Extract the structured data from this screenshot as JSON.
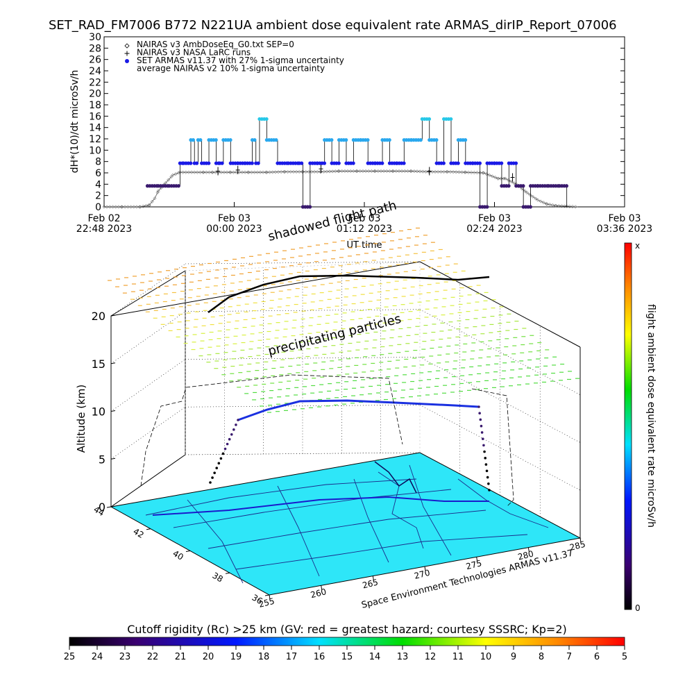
{
  "title": "SET_RAD_FM7006  B772 N221UA ambient dose equivalent rate ARMAS_dirIP_Report_07006",
  "chart_data": [
    {
      "type": "scatter",
      "ylabel": "dH*(10)/dt microSv/h",
      "xlabel": "UT time",
      "ylim": [
        0,
        30
      ],
      "yticks": [
        0,
        2,
        4,
        6,
        8,
        10,
        12,
        14,
        16,
        18,
        20,
        22,
        24,
        26,
        28,
        30
      ],
      "xticks": [
        {
          "day": "Feb 02",
          "time": "22:48 2023"
        },
        {
          "day": "Feb 03",
          "time": "00:00 2023"
        },
        {
          "day": "Feb 03",
          "time": "01:12 2023"
        },
        {
          "day": "Feb 03",
          "time": "02:24 2023"
        },
        {
          "day": "Feb 03",
          "time": "03:36 2023"
        }
      ],
      "legend": [
        {
          "label": "NAIRAS v3 AmbDoseEq_G0.txt SEP=0",
          "marker": "diamond"
        },
        {
          "label": "NAIRAS v3 NASA LaRC runs",
          "marker": "plus"
        },
        {
          "label": "SET ARMAS v11.37 with 27% 1-sigma uncertainty",
          "marker": "dot"
        },
        {
          "label": "average NAIRAS v2 10% 1-sigma uncertainty",
          "marker": "none"
        }
      ],
      "series": [
        {
          "name": "NAIRAS v3 AmbDoseEq_G0.txt SEP=0",
          "x_minutes": [
            0,
            10,
            20,
            25,
            28,
            30,
            34,
            38,
            42,
            50,
            55,
            60,
            70,
            80,
            90,
            100,
            110,
            120,
            130,
            140,
            150,
            160,
            170,
            180,
            190,
            200,
            210,
            218,
            222,
            228,
            234,
            240,
            245,
            250,
            256,
            262
          ],
          "values": [
            0,
            0,
            0,
            0.3,
            1.5,
            2.8,
            4.2,
            5.6,
            6.1,
            6.1,
            6.1,
            6.1,
            6.1,
            6.1,
            6.1,
            6.2,
            6.2,
            6.2,
            6.3,
            6.3,
            6.3,
            6.3,
            6.3,
            6.2,
            6.2,
            6.1,
            6.0,
            5.0,
            5.0,
            4.0,
            2.5,
            1.2,
            0.5,
            0.2,
            0.1,
            0
          ]
        },
        {
          "name": "NAIRAS v3 NASA LaRC runs",
          "points": [
            [
              63,
              6.3
            ],
            [
              74,
              6.5
            ],
            [
              120,
              6.7
            ],
            [
              180,
              6.3
            ],
            [
              226,
              5.2
            ]
          ]
        },
        {
          "name": "SET ARMAS v11.37 with 27% 1-sigma uncertainty",
          "x_minutes": [
            24,
            30,
            36,
            42,
            44,
            48,
            50,
            52,
            54,
            58,
            62,
            64,
            66,
            70,
            74,
            78,
            82,
            84,
            86,
            90,
            96,
            102,
            108,
            110,
            114,
            118,
            122,
            126,
            130,
            134,
            138,
            142,
            146,
            150,
            154,
            158,
            162,
            166,
            170,
            176,
            180,
            184,
            188,
            192,
            196,
            200,
            204,
            208,
            212,
            216,
            220,
            224,
            228,
            232,
            236,
            240,
            246,
            252,
            256
          ],
          "values": [
            3.7,
            3.7,
            3.7,
            7.7,
            7.7,
            11.8,
            7.7,
            11.8,
            7.7,
            11.8,
            7.7,
            7.7,
            11.8,
            7.7,
            7.7,
            7.7,
            11.8,
            7.7,
            15.5,
            11.8,
            7.7,
            7.7,
            7.7,
            0,
            7.7,
            7.7,
            11.8,
            7.7,
            11.8,
            7.7,
            11.8,
            11.8,
            7.7,
            7.7,
            11.8,
            7.7,
            7.7,
            11.8,
            11.8,
            15.5,
            11.8,
            7.7,
            15.5,
            7.7,
            11.8,
            7.7,
            7.7,
            0,
            7.7,
            7.7,
            3.7,
            7.7,
            3.7,
            0,
            3.7,
            3.7,
            3.7,
            3.7,
            0
          ]
        }
      ]
    },
    {
      "type": "3d-surface-map",
      "shadow_label": "shadowed flight path",
      "particles_label": "precipitating particles",
      "zlabel": "Altitude (km)",
      "zticks": [
        0,
        5,
        10,
        15,
        20
      ],
      "lat_ticks": [
        44,
        42,
        40,
        38,
        36
      ],
      "lon_ticks": [
        255,
        260,
        265,
        270,
        275,
        280,
        285
      ],
      "credit": "Space Environment Technologies ARMAS v11.37",
      "colorbar_label": "flight ambient dose equivalent rate microSv/h",
      "colorbar_top": "x",
      "colorbar_bottom": "0"
    },
    {
      "type": "colorbar",
      "label": "Cutoff rigidity (Rc) >25 km (GV: red = greatest hazard; courtesy SSSRC; Kp=2)",
      "ticks": [
        25,
        24,
        23,
        22,
        21,
        20,
        19,
        18,
        17,
        16,
        15,
        14,
        13,
        12,
        11,
        10,
        9,
        8,
        7,
        6,
        5
      ]
    }
  ],
  "colors": {
    "armas": "#1a1ae6",
    "armas_dark": "#3a1a6e",
    "armas_light": "#28c8e8",
    "map_fill": "#2ee6f8",
    "axis": "#000000"
  }
}
